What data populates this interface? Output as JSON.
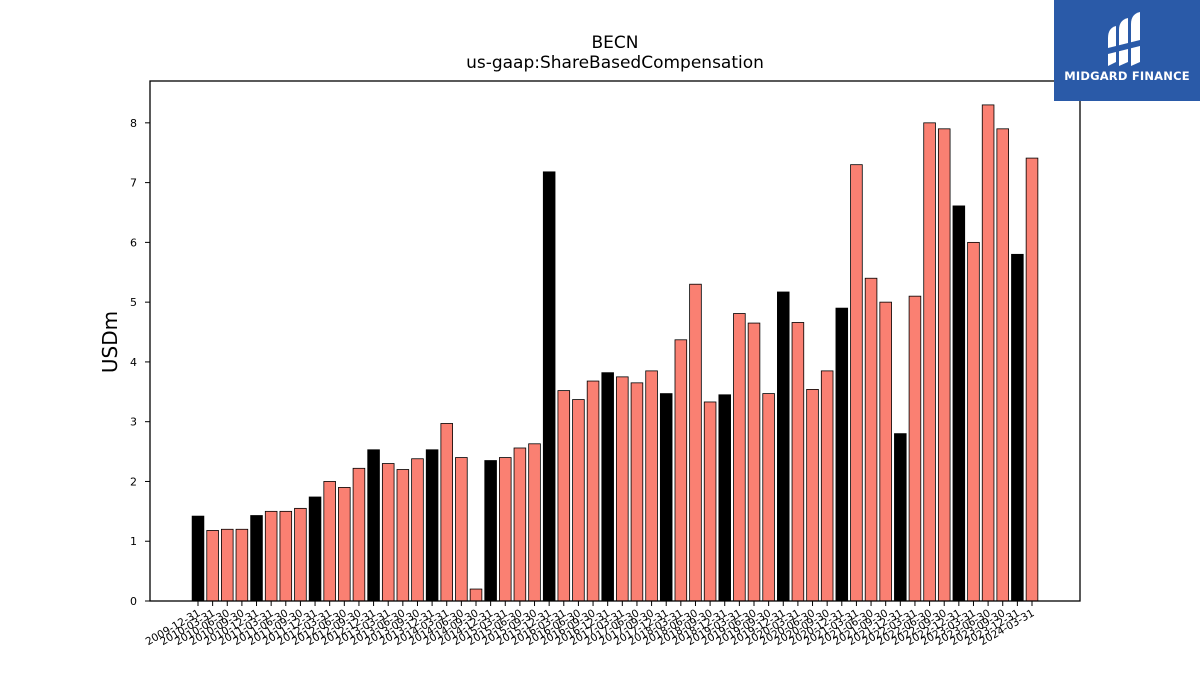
{
  "chart_data": {
    "type": "bar",
    "title": "BECN",
    "subtitle": "us-gaap:ShareBasedCompensation",
    "ylabel": "USDm",
    "xlabel": "",
    "ylim": [
      0,
      8.7
    ],
    "yticks": [
      0,
      1,
      2,
      3,
      4,
      5,
      6,
      7,
      8
    ],
    "colors": {
      "fiscal_year_end": "#000000",
      "quarter": "#fa8072"
    },
    "categories": [
      "2009-12-31",
      "2010-03-31",
      "2010-06-30",
      "2010-09-30",
      "2010-12-31",
      "2011-03-31",
      "2011-06-30",
      "2011-09-30",
      "2011-12-31",
      "2012-03-31",
      "2012-06-30",
      "2012-09-30",
      "2012-12-31",
      "2013-03-31",
      "2013-06-30",
      "2013-09-30",
      "2013-12-31",
      "2014-03-31",
      "2014-06-30",
      "2014-09-30",
      "2014-12-31",
      "2015-03-31",
      "2015-06-30",
      "2015-09-30",
      "2015-12-31",
      "2016-03-31",
      "2016-06-30",
      "2016-09-30",
      "2016-12-31",
      "2017-03-31",
      "2017-06-30",
      "2017-09-30",
      "2017-12-31",
      "2018-03-31",
      "2018-06-30",
      "2018-09-30",
      "2018-12-31",
      "2019-03-31",
      "2019-06-30",
      "2019-09-30",
      "2019-12-31",
      "2020-03-31",
      "2020-06-30",
      "2020-09-30",
      "2020-12-31",
      "2021-03-31",
      "2021-06-30",
      "2021-09-30",
      "2021-12-31",
      "2022-03-31",
      "2022-06-30",
      "2022-09-30",
      "2022-12-31",
      "2023-03-31",
      "2023-06-30",
      "2023-09-30",
      "2023-12-31",
      "2024-03-31"
    ],
    "values": [
      1.42,
      1.18,
      1.2,
      1.2,
      1.43,
      1.5,
      1.5,
      1.55,
      1.74,
      2.0,
      1.9,
      2.22,
      2.53,
      2.3,
      2.2,
      2.38,
      2.53,
      2.97,
      2.4,
      0.2,
      2.35,
      2.4,
      2.56,
      2.63,
      7.18,
      3.52,
      3.37,
      3.68,
      3.82,
      3.75,
      3.65,
      3.85,
      3.47,
      4.37,
      5.3,
      3.33,
      3.45,
      4.81,
      4.65,
      3.47,
      5.17,
      4.66,
      3.54,
      3.85,
      4.9,
      7.3,
      5.4,
      5.0,
      2.8,
      5.1,
      8.0,
      7.9,
      6.61,
      6.0,
      8.3,
      7.9,
      5.8,
      7.41
    ],
    "bar_kind": [
      "fy",
      "q",
      "q",
      "q",
      "fy",
      "q",
      "q",
      "q",
      "fy",
      "q",
      "q",
      "q",
      "fy",
      "q",
      "q",
      "q",
      "fy",
      "q",
      "q",
      "q",
      "fy",
      "q",
      "q",
      "q",
      "fy",
      "q",
      "q",
      "q",
      "fy",
      "q",
      "q",
      "q",
      "fy",
      "q",
      "q",
      "q",
      "fy",
      "q",
      "q",
      "q",
      "fy",
      "q",
      "q",
      "q",
      "fy",
      "q",
      "q",
      "q",
      "fy",
      "q",
      "q",
      "q",
      "fy",
      "q",
      "q",
      "q",
      "fy",
      "q"
    ]
  },
  "logo": {
    "text": "MIDGARD FINANCE"
  }
}
